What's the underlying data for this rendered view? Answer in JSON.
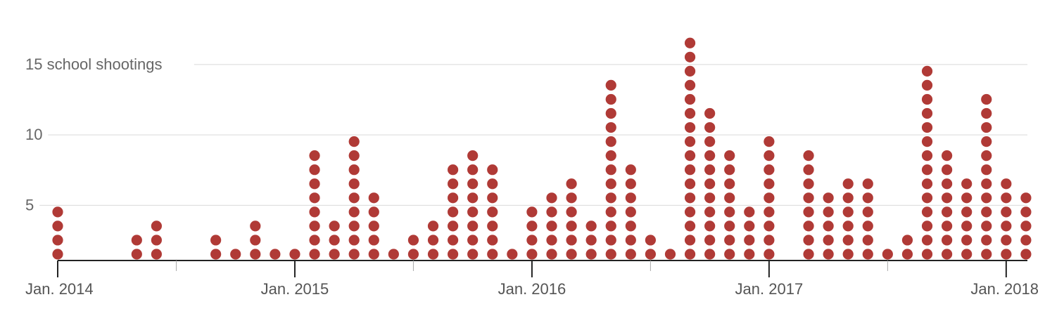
{
  "chart_data": {
    "type": "scatter",
    "title": "",
    "xlabel": "",
    "ylabel": "",
    "y_axis": {
      "ticks": [
        5,
        10,
        15
      ],
      "tick_labels": [
        "5",
        "10",
        "15 school shootings"
      ],
      "range": [
        0,
        16
      ]
    },
    "x_axis": {
      "start_month": "Jan. 2014",
      "end_month": "Jan. 2018",
      "major_tick_labels": [
        "Jan. 2014",
        "Jan. 2015",
        "Jan. 2016",
        "Jan. 2017",
        "Jan. 2018"
      ],
      "minor_ticks": "mid-year (July)"
    },
    "grid": true,
    "dot_color": "#b03a36",
    "series": [
      {
        "months": [
          "2014-01",
          "2014-02",
          "2014-03",
          "2014-04",
          "2014-05",
          "2014-06",
          "2014-07",
          "2014-08",
          "2014-09",
          "2014-10",
          "2014-11",
          "2014-12",
          "2015-01",
          "2015-02",
          "2015-03",
          "2015-04",
          "2015-05",
          "2015-06",
          "2015-07",
          "2015-08",
          "2015-09",
          "2015-10",
          "2015-11",
          "2015-12",
          "2016-01",
          "2016-02",
          "2016-03",
          "2016-04",
          "2016-05",
          "2016-06",
          "2016-07",
          "2016-08",
          "2016-09",
          "2016-10",
          "2016-11",
          "2016-12",
          "2017-01",
          "2017-02",
          "2017-03",
          "2017-04",
          "2017-05",
          "2017-06",
          "2017-07",
          "2017-08",
          "2017-09",
          "2017-10",
          "2017-11",
          "2017-12",
          "2018-01",
          "2018-02"
        ],
        "values": [
          4,
          0,
          0,
          0,
          2,
          3,
          0,
          0,
          2,
          1,
          3,
          1,
          1,
          8,
          3,
          9,
          5,
          1,
          2,
          3,
          7,
          8,
          7,
          1,
          4,
          5,
          6,
          3,
          13,
          7,
          2,
          1,
          16,
          11,
          8,
          4,
          9,
          0,
          8,
          5,
          6,
          6,
          1,
          2,
          14,
          8,
          6,
          12,
          6,
          5
        ]
      }
    ]
  }
}
